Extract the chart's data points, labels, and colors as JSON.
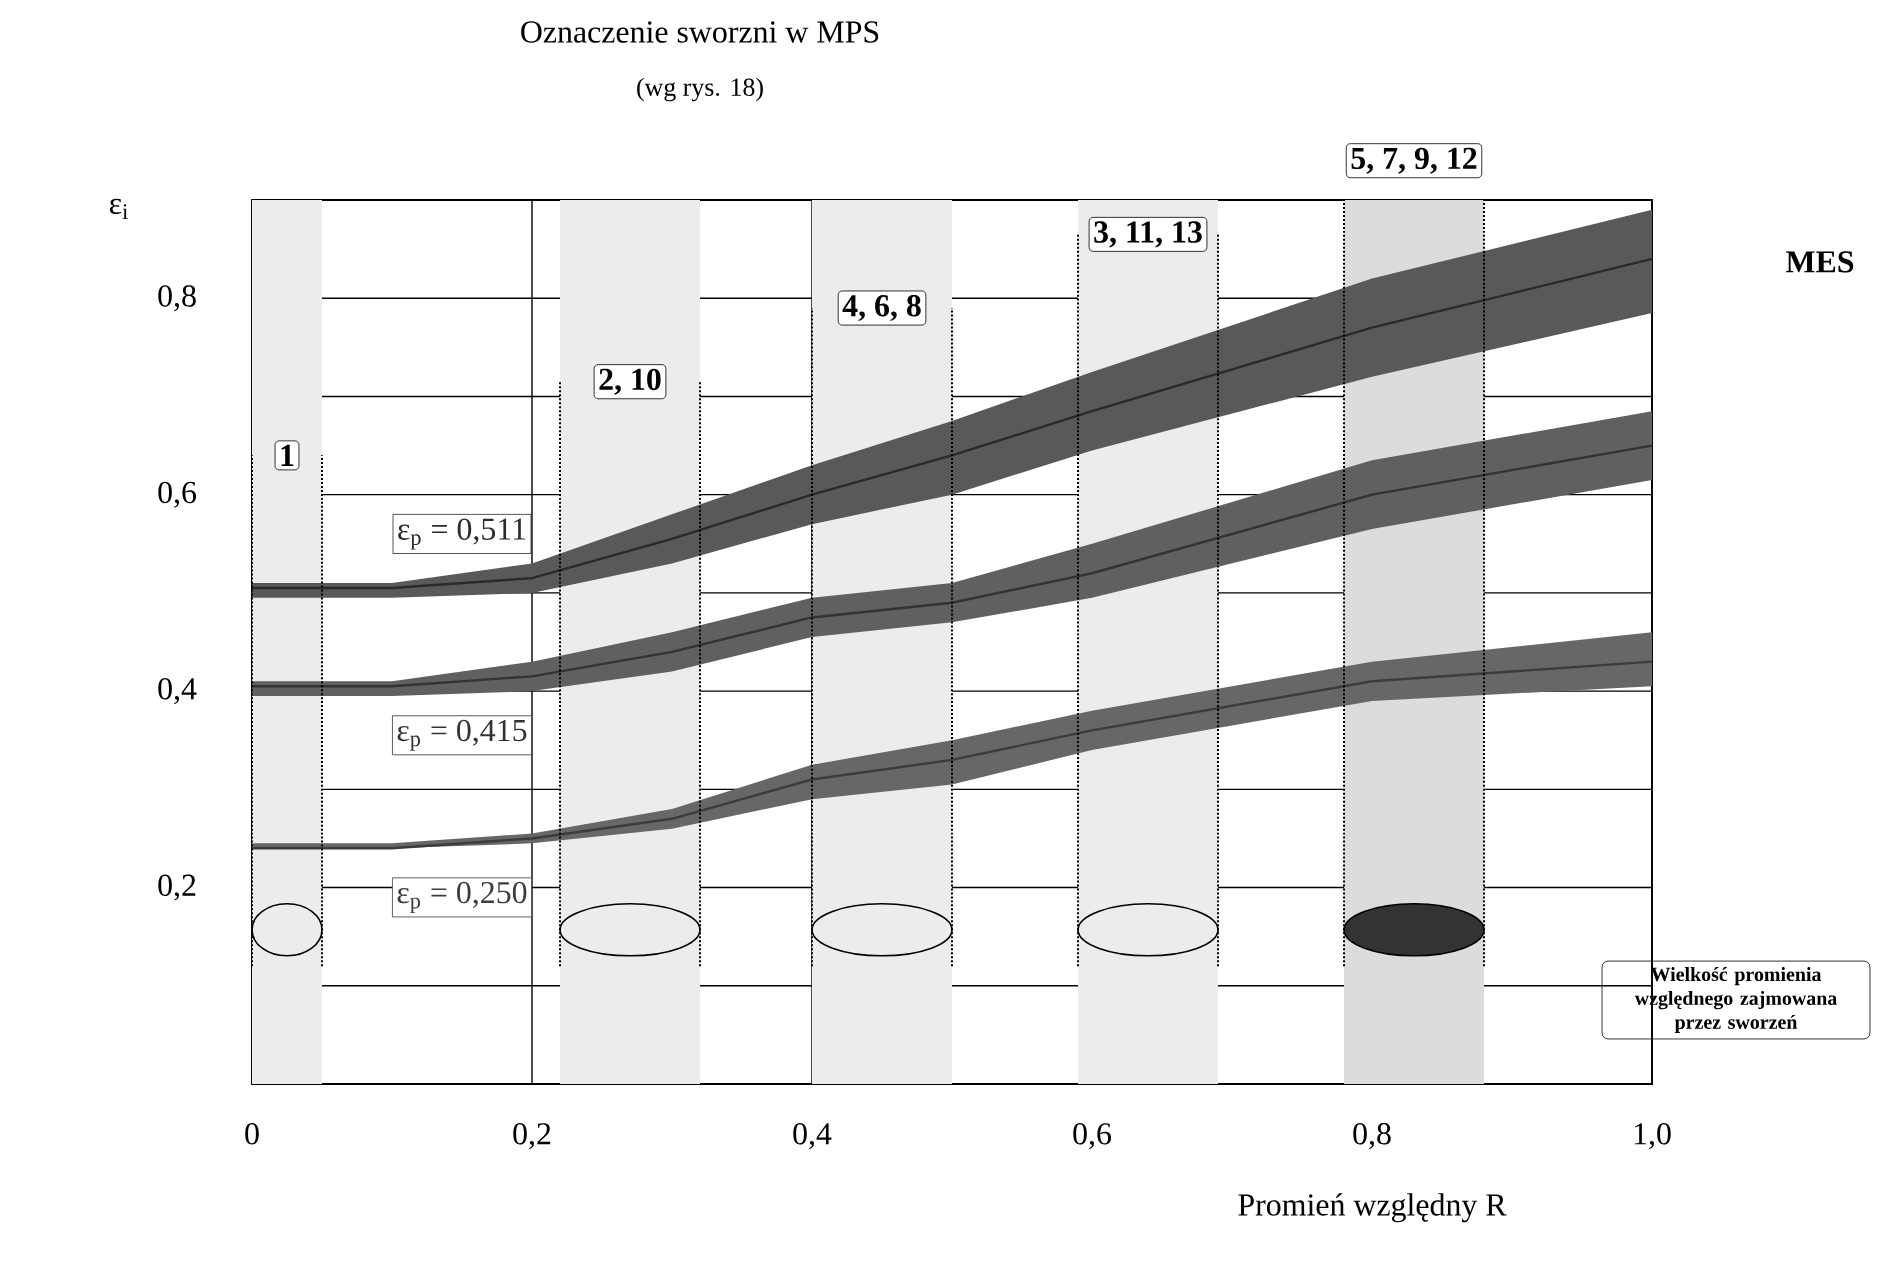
{
  "chart_data": {
    "type": "line",
    "title": "Oznaczenie sworzni w MPS",
    "subtitle": "(wg rys. 18)",
    "xlabel": "Promień względny R",
    "ylabel": "ε$_{i}$",
    "xlim": [
      0,
      1
    ],
    "ylim": [
      0,
      0.9
    ],
    "xticks": [
      0,
      {
        "value": 0.2,
        "label": "0,2"
      },
      {
        "value": 0.4,
        "label": "0,4"
      },
      {
        "value": 0.6,
        "label": "0,6"
      },
      {
        "value": 0.8,
        "label": "0,8"
      },
      {
        "value": 1,
        "label": "1,0"
      }
    ],
    "yticks": [
      {
        "value": 0,
        "label": null
      },
      {
        "value": 0.1,
        "label": null
      },
      {
        "value": 0.2,
        "label": "0,2"
      },
      {
        "value": 0.3,
        "label": null
      },
      {
        "value": 0.4,
        "label": "0,4"
      },
      {
        "value": 0.5,
        "label": null
      },
      {
        "value": 0.6,
        "label": "0,6"
      },
      {
        "value": 0.7,
        "label": null
      },
      {
        "value": 0.8,
        "label": "0,8"
      },
      {
        "value": 0.9,
        "label": null
      }
    ],
    "grid": true,
    "legend": false,
    "x": [
      0,
      0.1,
      0.2,
      0.3,
      0.4,
      0.5,
      0.6,
      0.8,
      1.0
    ],
    "series": [
      {
        "name": "ε$_{p}$ = 0,511",
        "color": "#2a2a2a",
        "values": [
          0.505,
          0.505,
          0.515,
          0.555,
          0.6,
          0.64,
          0.685,
          0.77,
          0.84
        ],
        "lower": [
          0.495,
          0.495,
          0.5,
          0.53,
          0.57,
          0.6,
          0.645,
          0.72,
          0.785
        ],
        "upper": [
          0.51,
          0.51,
          0.53,
          0.58,
          0.63,
          0.675,
          0.725,
          0.82,
          0.89
        ]
      },
      {
        "name": "ε$_{p}$ = 0,415",
        "color": "#333333",
        "values": [
          0.405,
          0.405,
          0.415,
          0.44,
          0.475,
          0.49,
          0.52,
          0.6,
          0.65
        ],
        "lower": [
          0.395,
          0.395,
          0.4,
          0.42,
          0.455,
          0.47,
          0.495,
          0.565,
          0.615
        ],
        "upper": [
          0.41,
          0.41,
          0.43,
          0.46,
          0.495,
          0.51,
          0.55,
          0.635,
          0.685
        ]
      },
      {
        "name": "ε$_{p}$ = 0,250",
        "color": "#3c3c3c",
        "values": [
          0.24,
          0.24,
          0.25,
          0.27,
          0.31,
          0.33,
          0.36,
          0.41,
          0.43
        ],
        "lower": [
          0.24,
          0.24,
          0.245,
          0.26,
          0.29,
          0.305,
          0.34,
          0.39,
          0.405
        ],
        "upper": [
          0.245,
          0.245,
          0.255,
          0.28,
          0.325,
          0.35,
          0.38,
          0.43,
          0.46
        ]
      }
    ],
    "bands": [
      {
        "axis": "x",
        "from": 0,
        "to": 0.05,
        "label": "1",
        "color": "#ececec"
      },
      {
        "axis": "x",
        "from": 0.22,
        "to": 0.32,
        "label": "2, 10",
        "color": "#ececec"
      },
      {
        "axis": "x",
        "from": 0.4,
        "to": 0.5,
        "label": "4, 6, 8",
        "color": "#ececec"
      },
      {
        "axis": "x",
        "from": 0.59,
        "to": 0.69,
        "label": "3, 11, 13",
        "color": "#ececec"
      },
      {
        "axis": "x",
        "from": 0.78,
        "to": 0.88,
        "label": "5, 7, 9, 12",
        "color": "#dcdcdc"
      }
    ],
    "annotations": [
      "MES",
      "Wielkość promienia względnego zajmowana przez sworzeń"
    ]
  }
}
